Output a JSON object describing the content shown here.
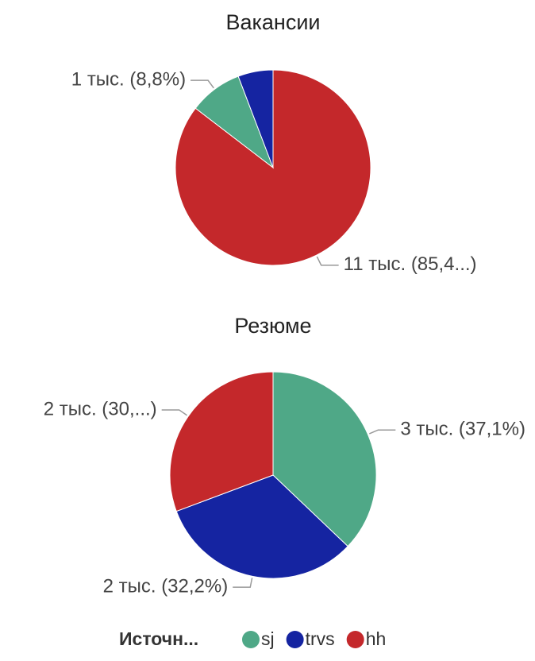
{
  "chart_data": [
    {
      "type": "pie",
      "title": "Вакансии",
      "categories": [
        "hh",
        "sj",
        "trvs"
      ],
      "colors": [
        "#c4282b",
        "#4fa887",
        "#1524a1"
      ],
      "values": [
        85.4,
        8.8,
        5.8
      ],
      "value_labels": [
        "11 тыс. (85,4...)",
        "1 тыс. (8,8%)",
        null
      ]
    },
    {
      "type": "pie",
      "title": "Резюме",
      "categories": [
        "sj",
        "trvs",
        "hh"
      ],
      "colors": [
        "#4fa887",
        "#1524a1",
        "#c4282b"
      ],
      "values": [
        37.1,
        32.2,
        30.7
      ],
      "value_labels": [
        "3 тыс. (37,1%)",
        "2 тыс. (32,2%)",
        "2 тыс. (30,...)"
      ]
    }
  ],
  "legend": {
    "title": "Источн...",
    "items": [
      {
        "name": "sj",
        "color": "#4fa887"
      },
      {
        "name": "trvs",
        "color": "#1524a1"
      },
      {
        "name": "hh",
        "color": "#c4282b"
      }
    ]
  }
}
